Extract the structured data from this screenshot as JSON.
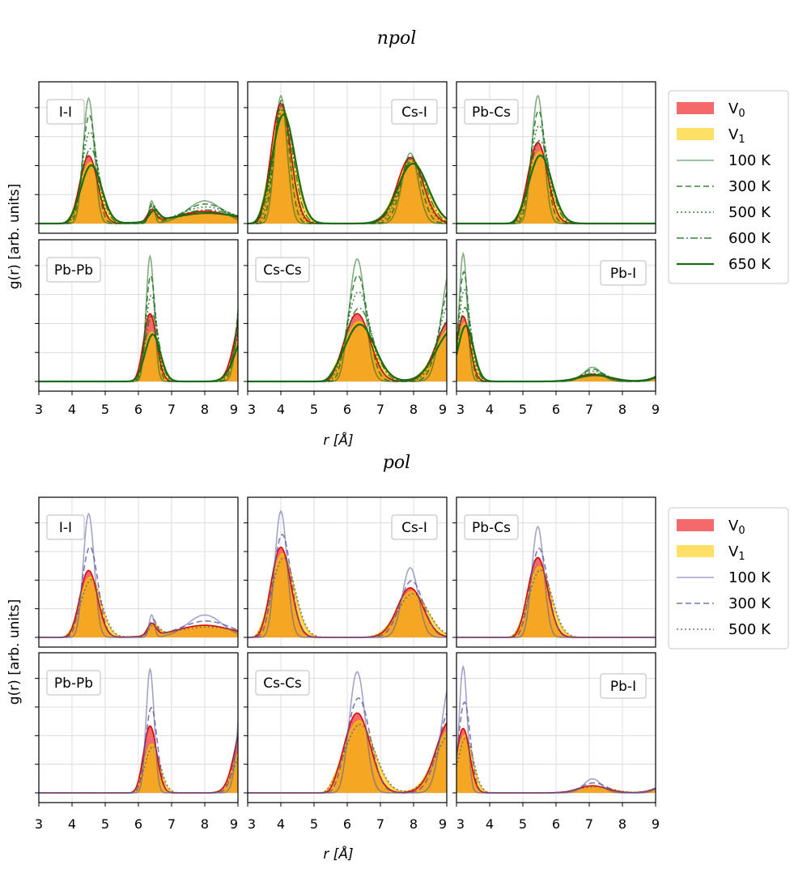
{
  "chart_data": [
    {
      "type": "line",
      "title": "npol",
      "xlabel": "r [Å]",
      "ylabel": "g(r) [arb. units]",
      "xlim": [
        3,
        9
      ],
      "xticks": [
        "3",
        "4",
        "5",
        "6",
        "7",
        "8",
        "9"
      ],
      "legend": [
        "V0",
        "V1",
        "100 K",
        "300 K",
        "500 K",
        "600 K",
        "650 K"
      ],
      "legend_position": "right",
      "line_color": "#1a6b1a",
      "temperatures": [
        "100 K",
        "300 K",
        "500 K",
        "600 K",
        "650 K"
      ],
      "panels": [
        {
          "label": "I-I",
          "label_pos": "left",
          "peaks": [
            [
              4.5,
              1.0,
              0.38
            ],
            [
              6.4,
              0.18,
              0.18
            ],
            [
              8.0,
              0.18,
              1.2
            ]
          ],
          "v0_max": 0.52,
          "v1_max": 0.47,
          "sharp_max": 0.96
        },
        {
          "label": "Cs-I",
          "label_pos": "right",
          "peaks": [
            [
              4.0,
              1.0,
              0.42
            ],
            [
              7.9,
              0.55,
              0.55
            ]
          ],
          "v0_max": 0.92,
          "v1_max": 0.88,
          "sharp_max": 0.98
        },
        {
          "label": "Pb-Cs",
          "label_pos": "left",
          "peaks": [
            [
              5.45,
              1.0,
              0.42
            ]
          ],
          "v0_max": 0.62,
          "v1_max": 0.55,
          "sharp_max": 0.98
        },
        {
          "label": "Pb-Pb",
          "label_pos": "left",
          "peaks": [
            [
              6.35,
              1.0,
              0.28
            ],
            [
              9.2,
              1.1,
              0.4
            ]
          ],
          "v0_max": 0.52,
          "v1_max": 0.38,
          "sharp_max": 0.96
        },
        {
          "label": "Cs-Cs",
          "label_pos": "left",
          "peaks": [
            [
              6.3,
              1.0,
              0.55
            ],
            [
              9.1,
              0.9,
              0.6
            ]
          ],
          "v0_max": 0.52,
          "v1_max": 0.46,
          "sharp_max": 0.94
        },
        {
          "label": "Pb-I",
          "label_pos": "right",
          "peaks": [
            [
              3.2,
              1.0,
              0.28
            ],
            [
              7.1,
              0.11,
              0.6
            ],
            [
              9.3,
              0.1,
              0.5
            ]
          ],
          "v0_max": 0.5,
          "v1_max": 0.45,
          "sharp_max": 0.98
        }
      ]
    },
    {
      "type": "line",
      "title": "pol",
      "xlabel": "r [Å]",
      "ylabel": "g(r) [arb. units]",
      "xlim": [
        3,
        9
      ],
      "xticks": [
        "3",
        "4",
        "5",
        "6",
        "7",
        "8",
        "9"
      ],
      "legend": [
        "V0",
        "V1",
        "100 K",
        "300 K",
        "500 K"
      ],
      "legend_position": "right",
      "line_color": "#5a5aa0",
      "temperatures": [
        "100 K",
        "300 K",
        "500 K"
      ],
      "panels": [
        {
          "label": "I-I",
          "label_pos": "left",
          "peaks": [
            [
              4.5,
              1.0,
              0.38
            ],
            [
              6.4,
              0.18,
              0.18
            ],
            [
              8.0,
              0.18,
              1.2
            ]
          ],
          "v0_max": 0.52,
          "v1_max": 0.47,
          "sharp_max": 0.96
        },
        {
          "label": "Cs-I",
          "label_pos": "right",
          "peaks": [
            [
              4.0,
              1.0,
              0.42
            ],
            [
              7.9,
              0.55,
              0.55
            ]
          ],
          "v0_max": 0.7,
          "v1_max": 0.65,
          "sharp_max": 0.98
        },
        {
          "label": "Pb-Cs",
          "label_pos": "left",
          "peaks": [
            [
              5.45,
              1.0,
              0.42
            ]
          ],
          "v0_max": 0.62,
          "v1_max": 0.55,
          "sharp_max": 0.86
        },
        {
          "label": "Pb-Pb",
          "label_pos": "left",
          "peaks": [
            [
              6.35,
              1.0,
              0.28
            ],
            [
              9.2,
              1.1,
              0.4
            ]
          ],
          "v0_max": 0.52,
          "v1_max": 0.38,
          "sharp_max": 0.96
        },
        {
          "label": "Cs-Cs",
          "label_pos": "left",
          "peaks": [
            [
              6.3,
              1.0,
              0.55
            ],
            [
              9.1,
              0.9,
              0.6
            ]
          ],
          "v0_max": 0.62,
          "v1_max": 0.56,
          "sharp_max": 0.94
        },
        {
          "label": "Pb-I",
          "label_pos": "right",
          "peaks": [
            [
              3.2,
              1.0,
              0.28
            ],
            [
              7.1,
              0.11,
              0.6
            ],
            [
              9.3,
              0.1,
              0.5
            ]
          ],
          "v0_max": 0.5,
          "v1_max": 0.45,
          "sharp_max": 0.98
        }
      ]
    }
  ],
  "colors": {
    "v0_fill": "#f46a6a",
    "v0_line": "#e00000",
    "v1_fill": "#ffe066",
    "overlap_fill": "#f5a623",
    "v1_line": "#f0c000"
  }
}
